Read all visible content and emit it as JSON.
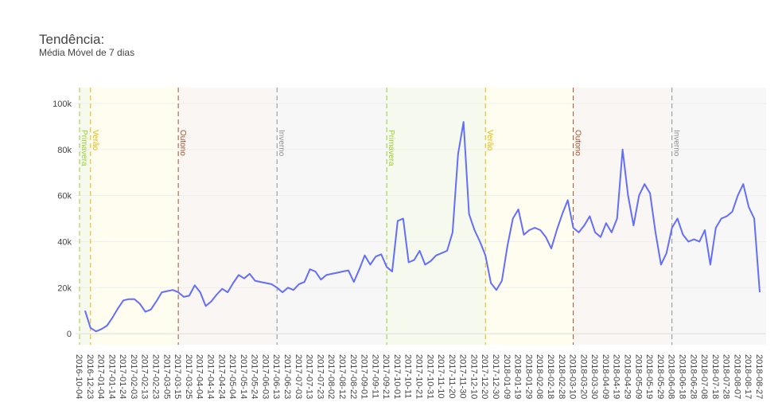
{
  "chart_data": {
    "type": "line",
    "title": "Tendência:",
    "subtitle": "Média Móvel de 7 dias",
    "color": "#636efa",
    "ylim": [
      -4800,
      106900
    ],
    "yticks": [
      0,
      {
        "value": 20000,
        "label": "20k"
      },
      {
        "value": 40000,
        "label": "40k"
      },
      {
        "value": 60000,
        "label": "60k"
      },
      {
        "value": 80000,
        "label": "80k"
      },
      {
        "value": 100000,
        "label": "100k"
      }
    ],
    "categories": [
      "2016-10-04",
      null,
      "2016-12-23",
      null,
      "2017-01-04",
      null,
      "2017-01-14",
      null,
      "2017-01-24",
      null,
      "2017-02-03",
      null,
      "2017-02-13",
      null,
      "2017-02-23",
      null,
      "2017-03-05",
      null,
      "2017-03-15",
      null,
      "2017-03-25",
      null,
      "2017-04-04",
      null,
      "2017-04-14",
      null,
      "2017-04-24",
      null,
      "2017-05-04",
      null,
      "2017-05-14",
      null,
      "2017-05-24",
      null,
      "2017-06-03",
      null,
      "2017-06-13",
      null,
      "2017-06-23",
      null,
      "2017-07-03",
      null,
      "2017-07-13",
      null,
      "2017-07-23",
      null,
      "2017-08-02",
      null,
      "2017-08-12",
      null,
      "2017-08-22",
      null,
      "2017-09-01",
      null,
      "2017-09-11",
      null,
      "2017-09-21",
      null,
      "2017-10-01",
      null,
      "2017-10-11",
      null,
      "2017-10-21",
      null,
      "2017-10-31",
      null,
      "2017-11-10",
      null,
      "2017-11-20",
      null,
      "2017-11-30",
      null,
      "2017-12-10",
      null,
      "2017-12-20",
      null,
      "2017-12-30",
      null,
      "2018-01-09",
      null,
      "2018-01-19",
      null,
      "2018-01-29",
      null,
      "2018-02-08",
      null,
      "2018-02-18",
      null,
      "2018-02-28",
      null,
      "2018-03-10",
      null,
      "2018-03-20",
      null,
      "2018-03-30",
      null,
      "2018-04-09",
      null,
      "2018-04-19",
      null,
      "2018-04-29",
      null,
      "2018-05-09",
      null,
      "2018-05-19",
      null,
      "2018-05-29",
      null,
      "2018-06-08",
      null,
      "2018-06-18",
      null,
      "2018-06-28",
      null,
      "2018-07-08",
      null,
      "2018-07-18",
      null,
      "2018-07-28",
      null,
      "2018-08-07",
      null,
      "2018-08-17",
      null,
      "2018-08-27"
    ],
    "values": [
      null,
      10000,
      2500,
      1000,
      2000,
      3500,
      7000,
      11000,
      14500,
      15000,
      15000,
      13000,
      9500,
      10500,
      14000,
      18000,
      18500,
      19000,
      18000,
      16000,
      16500,
      21000,
      18000,
      12000,
      14000,
      17000,
      19500,
      18000,
      22000,
      25500,
      24000,
      26000,
      23000,
      22500,
      22000,
      21500,
      20000,
      18000,
      20000,
      19000,
      21500,
      22500,
      28000,
      27000,
      23500,
      25500,
      26000,
      26500,
      27000,
      27500,
      22500,
      28000,
      34000,
      30000,
      33500,
      34500,
      29000,
      27000,
      49000,
      50000,
      31000,
      32000,
      36000,
      30000,
      31500,
      34000,
      35000,
      36000,
      44000,
      78000,
      92000,
      52000,
      45000,
      40000,
      34000,
      22000,
      19000,
      23000,
      38000,
      50000,
      54000,
      43000,
      45000,
      46000,
      45000,
      42000,
      37000,
      45000,
      52000,
      58000,
      46000,
      44000,
      47000,
      51000,
      44000,
      42000,
      48000,
      44000,
      50000,
      80000,
      60000,
      47000,
      60000,
      65000,
      61000,
      44000,
      30000,
      35000,
      46000,
      50000,
      43000,
      40000,
      41000,
      40000,
      45000,
      30000,
      46000,
      50000,
      51000,
      53000,
      60000,
      65000,
      55000,
      50000,
      18000
    ],
    "seasons": [
      {
        "name": "Primavera",
        "category": "2016-10-04",
        "color": "#9acd32",
        "band": "#f6faee"
      },
      {
        "name": "Verão",
        "category": "2016-12-23",
        "color": "#e6b800",
        "band": "#fffcf0"
      },
      {
        "name": "Outono",
        "category": "2017-03-15",
        "color": "#a0522d",
        "band": "#faf6f3"
      },
      {
        "name": "Inverno",
        "category": "2017-06-13",
        "color": "#909090",
        "band": "#f7f7f7"
      },
      {
        "name": "Primavera",
        "category": "2017-09-21",
        "color": "#9acd32",
        "band": "#f6faee"
      },
      {
        "name": "Verão",
        "category": "2017-12-20",
        "color": "#e6b800",
        "band": "#fffcf0"
      },
      {
        "name": "Outono",
        "category": "2018-03-10",
        "color": "#a0522d",
        "band": "#faf6f3"
      },
      {
        "name": "Inverno",
        "category": "2018-06-08",
        "color": "#909090",
        "band": "#f7f7f7"
      }
    ]
  }
}
